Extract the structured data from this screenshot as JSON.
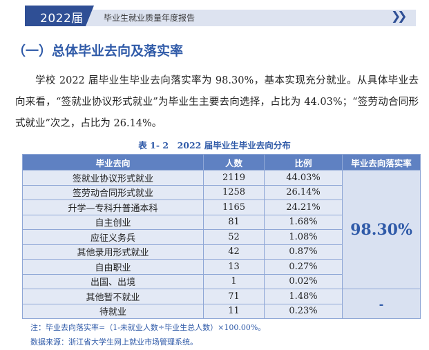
{
  "header": {
    "year_label": "2022届",
    "title": "毕业生就业质量年度报告",
    "arrows": "❯❯"
  },
  "section_title": "（一）总体毕业去向及落实率",
  "paragraph": "学校 2022 届毕业生毕业去向落实率为 98.30%，基本实现充分就业。从具体毕业去向来看，“签就业协议形式就业”为毕业生主要去向选择，占比为 44.03%；“签劳动合同形式就业”次之，占比为 26.14%。",
  "table": {
    "caption": "表 1- 2　2022 届毕业生毕业去向分布",
    "headers": [
      "毕业去向",
      "人数",
      "比例",
      "毕业去向落实率"
    ],
    "rows": [
      {
        "destination": "签就业协议形式就业",
        "count": "2119",
        "ratio": "44.03%"
      },
      {
        "destination": "签劳动合同形式就业",
        "count": "1258",
        "ratio": "26.14%"
      },
      {
        "destination": "升学—专科升普通本科",
        "count": "1165",
        "ratio": "24.21%"
      },
      {
        "destination": "自主创业",
        "count": "81",
        "ratio": "1.68%"
      },
      {
        "destination": "应征义务兵",
        "count": "52",
        "ratio": "1.08%"
      },
      {
        "destination": "其他录用形式就业",
        "count": "42",
        "ratio": "0.87%"
      },
      {
        "destination": "自由职业",
        "count": "13",
        "ratio": "0.27%"
      },
      {
        "destination": "出国、出境",
        "count": "1",
        "ratio": "0.02%"
      },
      {
        "destination": "其他暂不就业",
        "count": "71",
        "ratio": "1.48%"
      },
      {
        "destination": "待就业",
        "count": "11",
        "ratio": "0.23%"
      }
    ],
    "rate_employed": "98.30%",
    "rate_unemployed": "-"
  },
  "notes": {
    "formula": "注：毕业去向落实率=（1-未就业人数÷毕业生总人数）×100.00%。",
    "source": "数据来源：浙江省大学生网上就业市场管理系统。"
  },
  "colors": {
    "accent": "#2f5aa8",
    "header_dark": "#2f4f95",
    "table_header": "#5f81c2",
    "table_cell": "#e3e9f5"
  }
}
